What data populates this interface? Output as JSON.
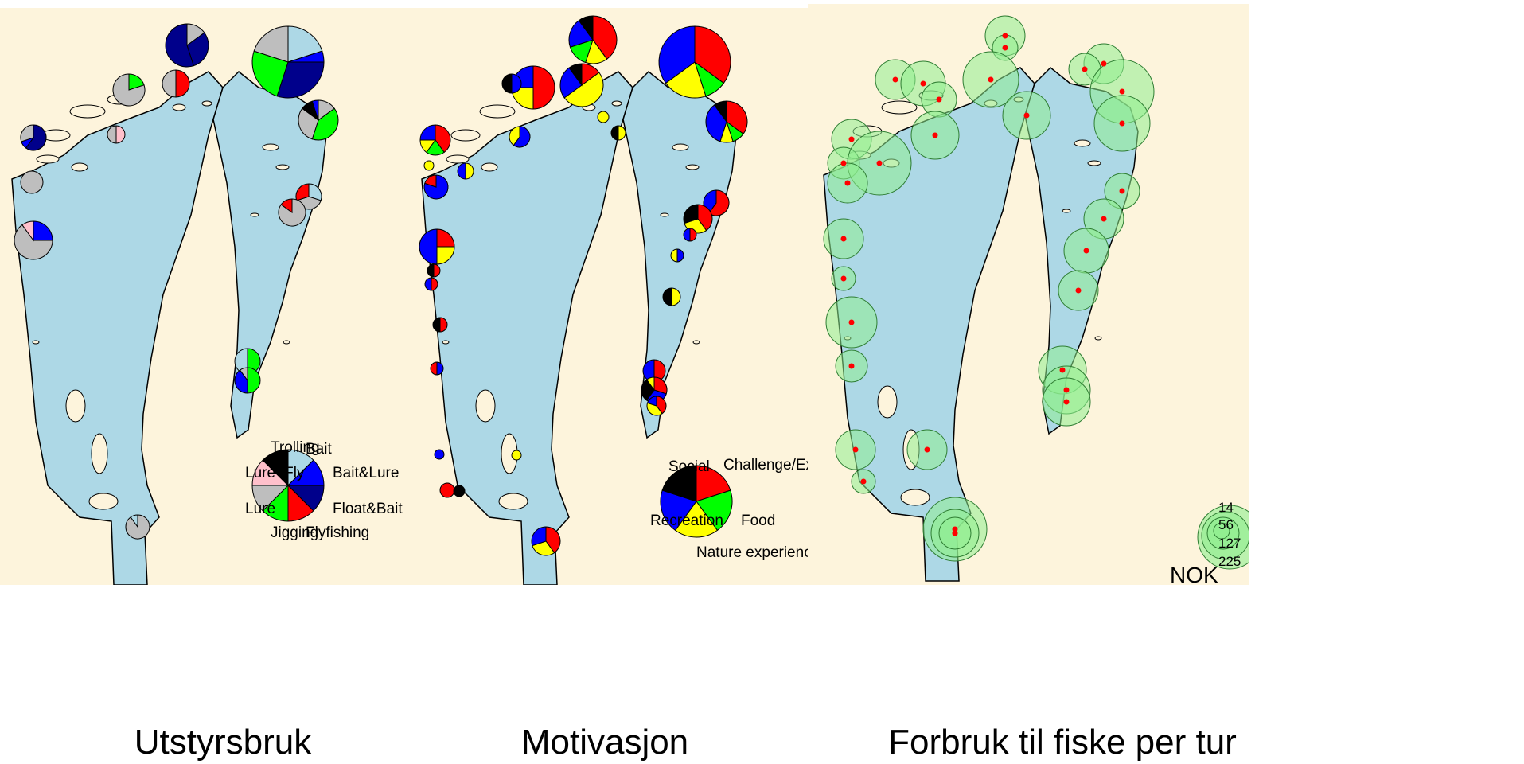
{
  "panels": [
    {
      "caption": "Utstyrsbruk",
      "legend_title": "",
      "categories": [
        {
          "name": "Bait",
          "color": "#add8e6"
        },
        {
          "name": "Bait&Lure",
          "color": "#0000ff"
        },
        {
          "name": "Float&Bait",
          "color": "#00008b"
        },
        {
          "name": "Flyfishing",
          "color": "#ff0000"
        },
        {
          "name": "Jigging",
          "color": "#00ff00"
        },
        {
          "name": "Lure",
          "color": "#bebebe"
        },
        {
          "name": "Lure+Fly",
          "color": "#ffc0cb"
        },
        {
          "name": "Trolling",
          "color": "#000000"
        }
      ]
    },
    {
      "caption": "Motivasjon",
      "categories": [
        {
          "name": "Challenge/Ex",
          "color": "#ff0000"
        },
        {
          "name": "Food",
          "color": "#00ff00"
        },
        {
          "name": "Nature experienc",
          "color": "#ffff00"
        },
        {
          "name": "Recreation",
          "color": "#0000ff"
        },
        {
          "name": "Social",
          "color": "#000000"
        }
      ]
    },
    {
      "caption": "Forbruk til fiske per tur",
      "unit": "NOK",
      "size_legend": [
        "14",
        "56",
        "127",
        "225"
      ],
      "circle_color": "#90ee90",
      "point_color": "#ff0000"
    }
  ],
  "colors": {
    "water": "#add8e6",
    "land": "#fdf4dc",
    "outline": "#000000"
  }
}
